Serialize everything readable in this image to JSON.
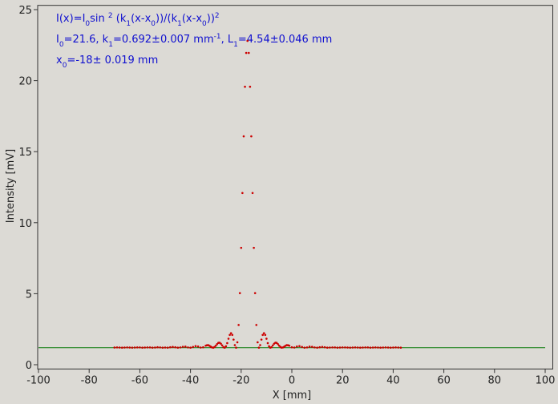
{
  "chart_data": {
    "type": "scatter",
    "annotations": [
      [
        {
          "text": "I(x)=I"
        },
        {
          "text": "0",
          "shift": "sub"
        },
        {
          "text": "sin "
        },
        {
          "text": "2",
          "shift": "super"
        },
        {
          "text": " (k"
        },
        {
          "text": "1",
          "shift": "sub"
        },
        {
          "text": "(x-x"
        },
        {
          "text": "0",
          "shift": "sub"
        },
        {
          "text": "))/(k"
        },
        {
          "text": "1",
          "shift": "sub"
        },
        {
          "text": "(x-x"
        },
        {
          "text": "0",
          "shift": "sub"
        },
        {
          "text": "))"
        },
        {
          "text": "2",
          "shift": "super"
        }
      ],
      [
        {
          "text": "I"
        },
        {
          "text": "0",
          "shift": "sub"
        },
        {
          "text": "=21.6,  k"
        },
        {
          "text": "1",
          "shift": "sub"
        },
        {
          "text": "=0.692±0.007 mm"
        },
        {
          "text": "-1",
          "shift": "super"
        },
        {
          "text": ",   L"
        },
        {
          "text": "1",
          "shift": "sub"
        },
        {
          "text": "=4.54±0.046 mm"
        }
      ],
      [
        {
          "text": "x"
        },
        {
          "text": "0",
          "shift": "sub"
        },
        {
          "text": "=-18±   0.019 mm"
        }
      ]
    ],
    "x_label": "X [mm]",
    "y_label": "Intensity [mV]",
    "xlim": [
      -100,
      103
    ],
    "ylim": [
      -0.3,
      25.3
    ],
    "xticks": [
      -100,
      -80,
      -60,
      -40,
      -20,
      0,
      20,
      40,
      60,
      80,
      100
    ],
    "yticks": [
      0,
      5,
      10,
      15,
      20,
      25
    ],
    "background": "#dcdad5",
    "series": [
      {
        "type": "line",
        "color": "#0a7a0a",
        "x": [
          -100,
          100
        ],
        "values": [
          1.2,
          1.2
        ]
      },
      {
        "type": "scatter",
        "color": "#cc0000",
        "x": [
          -70,
          -69,
          -68,
          -67,
          -66,
          -65,
          -64,
          -63,
          -62,
          -61,
          -60,
          -59,
          -58,
          -57,
          -56,
          -55,
          -54,
          -53,
          -52,
          -51,
          -50,
          -49,
          -48,
          -47,
          -46,
          -45,
          -44,
          -43,
          -42,
          -41,
          -40,
          -39,
          -38,
          -37,
          -36,
          -35,
          -34,
          -33.5,
          -33,
          -32.5,
          -32,
          -31.5,
          -31,
          -30.5,
          -30,
          -29.5,
          -29,
          -28.5,
          -28,
          -27.5,
          -27,
          -26.5,
          -26,
          -25.5,
          -25,
          -24.5,
          -24,
          -23.5,
          -23,
          -22.5,
          -22,
          -21.5,
          -21,
          -20.5,
          -20,
          -19.5,
          -19,
          -18.5,
          -18,
          -17.5,
          -17,
          -16.5,
          -16,
          -15.5,
          -15,
          -14.5,
          -14,
          -13.5,
          -13,
          -12.5,
          -12,
          -11.5,
          -11,
          -10.5,
          -10,
          -9.5,
          -9,
          -8.5,
          -8,
          -7.5,
          -7,
          -6.5,
          -6,
          -5.5,
          -5,
          -4.5,
          -4,
          -3.5,
          -3,
          -2.5,
          -2,
          -1.5,
          -1,
          0,
          1,
          2,
          3,
          4,
          5,
          6,
          7,
          8,
          9,
          10,
          11,
          12,
          13,
          14,
          15,
          16,
          17,
          18,
          19,
          20,
          21,
          22,
          23,
          24,
          25,
          26,
          27,
          28,
          29,
          30,
          31,
          32,
          33,
          34,
          35,
          36,
          37,
          38,
          39,
          40,
          41,
          42,
          43
        ],
        "values": [
          1.21,
          1.22,
          1.21,
          1.2,
          1.21,
          1.22,
          1.21,
          1.2,
          1.21,
          1.22,
          1.22,
          1.2,
          1.21,
          1.22,
          1.22,
          1.2,
          1.21,
          1.23,
          1.22,
          1.2,
          1.21,
          1.2,
          1.23,
          1.25,
          1.23,
          1.2,
          1.22,
          1.26,
          1.27,
          1.22,
          1.2,
          1.25,
          1.31,
          1.28,
          1.21,
          1.23,
          1.34,
          1.37,
          1.38,
          1.33,
          1.27,
          1.22,
          1.2,
          1.25,
          1.34,
          1.45,
          1.54,
          1.55,
          1.48,
          1.36,
          1.24,
          1.2,
          1.3,
          1.52,
          1.83,
          2.1,
          2.22,
          2.1,
          1.77,
          1.38,
          1.2,
          1.58,
          2.8,
          5.04,
          8.23,
          12.09,
          16.08,
          19.57,
          21.95,
          22.8,
          21.95,
          19.57,
          16.08,
          12.09,
          8.23,
          5.04,
          2.8,
          1.58,
          1.2,
          1.38,
          1.77,
          2.1,
          2.22,
          2.1,
          1.83,
          1.52,
          1.3,
          1.2,
          1.24,
          1.36,
          1.48,
          1.55,
          1.54,
          1.45,
          1.34,
          1.25,
          1.2,
          1.22,
          1.27,
          1.33,
          1.38,
          1.37,
          1.34,
          1.23,
          1.21,
          1.28,
          1.31,
          1.25,
          1.2,
          1.22,
          1.27,
          1.26,
          1.22,
          1.2,
          1.23,
          1.25,
          1.23,
          1.2,
          1.21,
          1.22,
          1.22,
          1.2,
          1.21,
          1.22,
          1.22,
          1.21,
          1.2,
          1.21,
          1.22,
          1.21,
          1.2,
          1.21,
          1.22,
          1.22,
          1.2,
          1.21,
          1.22,
          1.21,
          1.2,
          1.21,
          1.22,
          1.21,
          1.2,
          1.21,
          1.22,
          1.21,
          1.2
        ]
      }
    ]
  }
}
